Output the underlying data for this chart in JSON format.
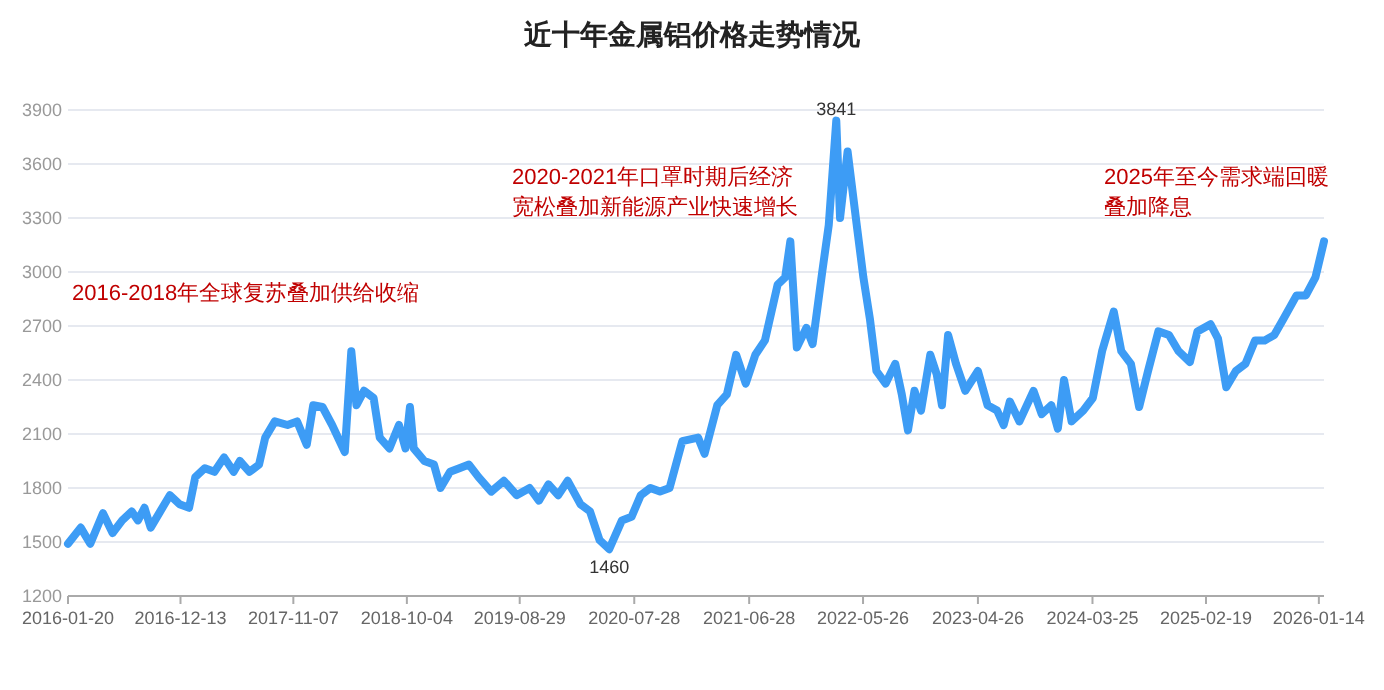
{
  "chart_data": {
    "type": "line",
    "title": "近十年金属铝价格走势情况",
    "x": [
      "2016-01-20",
      "2016-02-26",
      "2016-03-25",
      "2016-05-01",
      "2016-05-29",
      "2016-06-26",
      "2016-07-24",
      "2016-08-11",
      "2016-08-30",
      "2016-09-17",
      "2016-10-15",
      "2016-11-12",
      "2016-12-10",
      "2017-01-07",
      "2017-01-25",
      "2017-02-22",
      "2017-03-22",
      "2017-04-19",
      "2017-05-17",
      "2017-06-04",
      "2017-07-02",
      "2017-07-30",
      "2017-08-17",
      "2017-09-14",
      "2017-10-21",
      "2017-11-18",
      "2017-12-16",
      "2018-01-04",
      "2018-01-31",
      "2018-02-28",
      "2018-04-06",
      "2018-04-25",
      "2018-05-10",
      "2018-06-01",
      "2018-06-29",
      "2018-07-17",
      "2018-08-14",
      "2018-09-11",
      "2018-09-30",
      "2018-10-13",
      "2018-10-24",
      "2018-11-24",
      "2018-12-22",
      "2019-01-10",
      "2019-02-07",
      "2019-03-06",
      "2019-04-03",
      "2019-05-01",
      "2019-06-07",
      "2019-07-14",
      "2019-08-20",
      "2019-09-27",
      "2019-10-24",
      "2019-11-21",
      "2019-12-19",
      "2020-01-16",
      "2020-02-22",
      "2020-03-21",
      "2020-04-18",
      "2020-05-16",
      "2020-06-22",
      "2020-07-20",
      "2020-08-16",
      "2020-09-13",
      "2020-10-11",
      "2020-11-08",
      "2020-12-15",
      "2021-01-30",
      "2021-02-18",
      "2021-03-27",
      "2021-04-24",
      "2021-05-21",
      "2021-06-18",
      "2021-07-16",
      "2021-08-13",
      "2021-09-19",
      "2021-10-11",
      "2021-10-26",
      "2021-11-14",
      "2021-12-12",
      "2021-12-30",
      "2022-01-27",
      "2022-02-15",
      "2022-03-09",
      "2022-03-20",
      "2022-04-11",
      "2022-05-09",
      "2022-05-27",
      "2022-06-15",
      "2022-07-04",
      "2022-07-31",
      "2022-08-28",
      "2022-09-16",
      "2022-10-04",
      "2022-10-23",
      "2022-11-11",
      "2022-12-08",
      "2022-12-27",
      "2023-01-11",
      "2023-01-29",
      "2023-02-21",
      "2023-03-20",
      "2023-04-26",
      "2023-05-24",
      "2023-06-21",
      "2023-07-10",
      "2023-07-28",
      "2023-08-25",
      "2023-10-05",
      "2023-10-29",
      "2023-11-26",
      "2023-12-15",
      "2024-01-02",
      "2024-01-24",
      "2024-02-27",
      "2024-03-26",
      "2024-04-22",
      "2024-05-26",
      "2024-06-17",
      "2024-07-15",
      "2024-08-08",
      "2024-09-03",
      "2024-10-03",
      "2024-11-03",
      "2024-12-01",
      "2025-01-03",
      "2025-01-25",
      "2025-03-04",
      "2025-03-26",
      "2025-04-19",
      "2025-05-17",
      "2025-06-14",
      "2025-07-12",
      "2025-08-09",
      "2025-09-06",
      "2025-10-03",
      "2025-11-10",
      "2025-12-07",
      "2026-01-04",
      "2026-01-29"
    ],
    "series": [
      {
        "color": "#3d9cf5",
        "values": [
          1490,
          1580,
          1490,
          1660,
          1550,
          1620,
          1670,
          1620,
          1690,
          1580,
          1670,
          1760,
          1710,
          1690,
          1860,
          1910,
          1890,
          1970,
          1890,
          1950,
          1890,
          1930,
          2080,
          2170,
          2150,
          2170,
          2040,
          2260,
          2250,
          2150,
          2000,
          2560,
          2260,
          2340,
          2300,
          2080,
          2020,
          2150,
          2020,
          2250,
          2020,
          1950,
          1930,
          1800,
          1890,
          1910,
          1930,
          1860,
          1780,
          1840,
          1760,
          1800,
          1730,
          1820,
          1760,
          1840,
          1710,
          1670,
          1510,
          1460,
          1620,
          1640,
          1760,
          1800,
          1780,
          1800,
          2060,
          2080,
          1990,
          2260,
          2320,
          2540,
          2380,
          2540,
          2620,
          2930,
          2970,
          3170,
          2580,
          2690,
          2600,
          3000,
          3260,
          3841,
          3300,
          3670,
          3240,
          2970,
          2740,
          2450,
          2380,
          2490,
          2320,
          2120,
          2340,
          2230,
          2540,
          2430,
          2260,
          2650,
          2490,
          2340,
          2450,
          2260,
          2230,
          2150,
          2280,
          2170,
          2340,
          2210,
          2260,
          2130,
          2400,
          2170,
          2230,
          2300,
          2560,
          2780,
          2560,
          2490,
          2250,
          2450,
          2670,
          2650,
          2560,
          2500,
          2670,
          2710,
          2630,
          2360,
          2450,
          2490,
          2620,
          2620,
          2650,
          2740,
          2870,
          2870,
          2970,
          3170
        ]
      }
    ],
    "xlim": [
      "2016-01-20",
      "2026-01-29"
    ],
    "xticks": [
      {
        "value": "2016-01-20",
        "label": "2016-01-20"
      },
      {
        "value": "2016-12-13",
        "label": "2016-12-13"
      },
      {
        "value": "2017-11-07",
        "label": "2017-11-07"
      },
      {
        "value": "2018-10-04",
        "label": "2018-10-04"
      },
      {
        "value": "2019-08-29",
        "label": "2019-08-29"
      },
      {
        "value": "2020-07-28",
        "label": "2020-07-28"
      },
      {
        "value": "2021-06-28",
        "label": "2021-06-28"
      },
      {
        "value": "2022-05-26",
        "label": "2022-05-26"
      },
      {
        "value": "2023-04-26",
        "label": "2023-04-26"
      },
      {
        "value": "2024-03-25",
        "label": "2024-03-25"
      },
      {
        "value": "2025-02-19",
        "label": "2025-02-19"
      },
      {
        "value": "2026-01-14",
        "label": "2026-01-14"
      }
    ],
    "ylim": [
      1200,
      3900
    ],
    "yticks": [
      1200,
      1500,
      1800,
      2100,
      2400,
      2700,
      3000,
      3300,
      3600,
      3900
    ],
    "grid": "y",
    "marker": "none",
    "line_style": "solid",
    "annotations": [
      "2016-2018年全球复苏叠加供给收缩",
      "2020-2021年口罩时期后经济宽松叠加新能源产业快速增长",
      "2025年至今需求端回暖叠加降息",
      {
        "text": "3841",
        "x": "2022-03-09",
        "y": 3841
      },
      {
        "text": "1460",
        "x": "2020-05-16",
        "y": 1460
      }
    ]
  }
}
